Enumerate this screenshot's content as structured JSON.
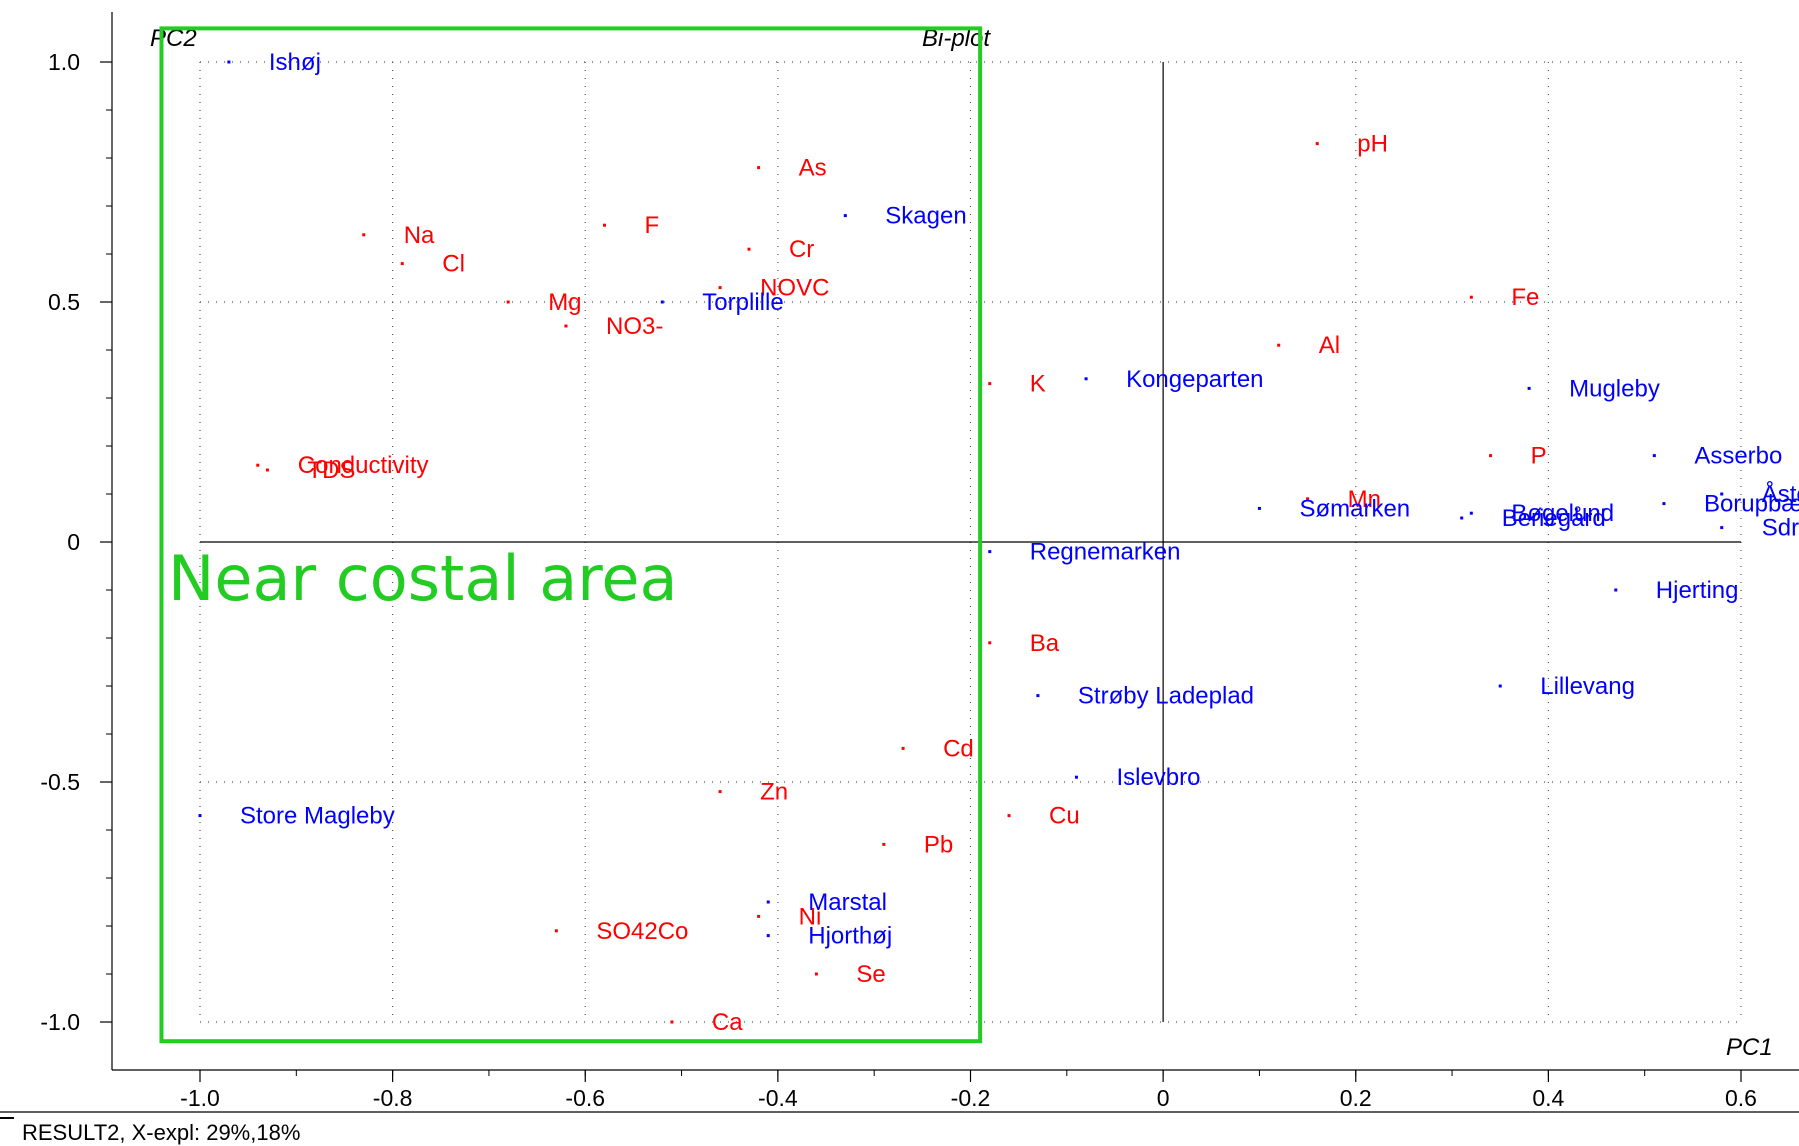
{
  "footer": {
    "text": "RESULT2, X-expl: 29%,18%"
  },
  "annotation": {
    "text": "Near costal area",
    "color": "#22cc22"
  },
  "chart_data": {
    "type": "scatter",
    "title": "Bi-plot",
    "xlabel": "PC1",
    "ylabel": "PC2",
    "xlim": [
      -1.0,
      0.6
    ],
    "ylim": [
      -1.0,
      1.0
    ],
    "xticks": [
      -1.0,
      -0.8,
      -0.6,
      -0.4,
      -0.2,
      0,
      0.2,
      0.4,
      0.6
    ],
    "xtick_labels": [
      "-1.0",
      "-0.8",
      "-0.6",
      "-0.4",
      "-0.2",
      "0",
      "0.2",
      "0.4",
      "0.6"
    ],
    "yticks": [
      1.0,
      0.5,
      0,
      -0.5,
      -1.0
    ],
    "ytick_labels": [
      "1.0",
      "0.5",
      "0",
      "-0.5",
      "-1.0"
    ],
    "grid": true,
    "highlight_region": {
      "x": [
        -1.04,
        -0.19
      ],
      "y": [
        -1.04,
        1.07
      ]
    },
    "series": [
      {
        "color": "#ff0000",
        "points": [
          {
            "label": "pH",
            "x": 0.16,
            "y": 0.83
          },
          {
            "label": "As",
            "x": -0.42,
            "y": 0.78
          },
          {
            "label": "F",
            "x": -0.58,
            "y": 0.66
          },
          {
            "label": "Na",
            "x": -0.83,
            "y": 0.64
          },
          {
            "label": "Cr",
            "x": -0.43,
            "y": 0.61
          },
          {
            "label": "Cl",
            "x": -0.79,
            "y": 0.58
          },
          {
            "label": "NOVC",
            "x": -0.46,
            "y": 0.53
          },
          {
            "label": "Mg",
            "x": -0.68,
            "y": 0.5
          },
          {
            "label": "Fe",
            "x": 0.32,
            "y": 0.51
          },
          {
            "label": "NO3-",
            "x": -0.62,
            "y": 0.45
          },
          {
            "label": "Al",
            "x": 0.12,
            "y": 0.41
          },
          {
            "label": "K",
            "x": -0.18,
            "y": 0.33
          },
          {
            "label": "P",
            "x": 0.34,
            "y": 0.18
          },
          {
            "label": "Conductivity",
            "x": -0.94,
            "y": 0.16
          },
          {
            "label": "TDS",
            "x": -0.93,
            "y": 0.15
          },
          {
            "label": "Mn",
            "x": 0.15,
            "y": 0.09
          },
          {
            "label": "Ba",
            "x": -0.18,
            "y": -0.21
          },
          {
            "label": "Cd",
            "x": -0.27,
            "y": -0.43
          },
          {
            "label": "Zn",
            "x": -0.46,
            "y": -0.52
          },
          {
            "label": "Cu",
            "x": -0.16,
            "y": -0.57
          },
          {
            "label": "Pb",
            "x": -0.29,
            "y": -0.63
          },
          {
            "label": "Ni",
            "x": -0.42,
            "y": -0.78
          },
          {
            "label": "SO42Co",
            "x": -0.63,
            "y": -0.81
          },
          {
            "label": "Se",
            "x": -0.36,
            "y": -0.9
          },
          {
            "label": "Ca",
            "x": -0.51,
            "y": -1.0
          }
        ]
      },
      {
        "color": "#0000ff",
        "points": [
          {
            "label": "Ishøj",
            "x": -0.97,
            "y": 1.0
          },
          {
            "label": "Skagen",
            "x": -0.33,
            "y": 0.68
          },
          {
            "label": "Torplille",
            "x": -0.52,
            "y": 0.5
          },
          {
            "label": "Kongeparten",
            "x": -0.08,
            "y": 0.34
          },
          {
            "label": "Mugleby",
            "x": 0.38,
            "y": 0.32
          },
          {
            "label": "Asserbo",
            "x": 0.51,
            "y": 0.18
          },
          {
            "label": "Åsted",
            "x": 0.58,
            "y": 0.1
          },
          {
            "label": "Sømarken",
            "x": 0.1,
            "y": 0.07
          },
          {
            "label": "Beriegård",
            "x": 0.31,
            "y": 0.05
          },
          {
            "label": "Bøgelund",
            "x": 0.32,
            "y": 0.06
          },
          {
            "label": "Borupbæk",
            "x": 0.52,
            "y": 0.08
          },
          {
            "label": "Sdr. Rosek",
            "x": 0.58,
            "y": 0.03
          },
          {
            "label": "Regnemarken",
            "x": -0.18,
            "y": -0.02
          },
          {
            "label": "Hjerting",
            "x": 0.47,
            "y": -0.1
          },
          {
            "label": "Lillevang",
            "x": 0.35,
            "y": -0.3
          },
          {
            "label": "Strøby Ladeplad",
            "x": -0.13,
            "y": -0.32
          },
          {
            "label": "Islevbro",
            "x": -0.09,
            "y": -0.49
          },
          {
            "label": "Store Magleby",
            "x": -1.0,
            "y": -0.57
          },
          {
            "label": "Marstal",
            "x": -0.41,
            "y": -0.75
          },
          {
            "label": "Hjorthøj",
            "x": -0.41,
            "y": -0.82
          }
        ]
      }
    ]
  }
}
